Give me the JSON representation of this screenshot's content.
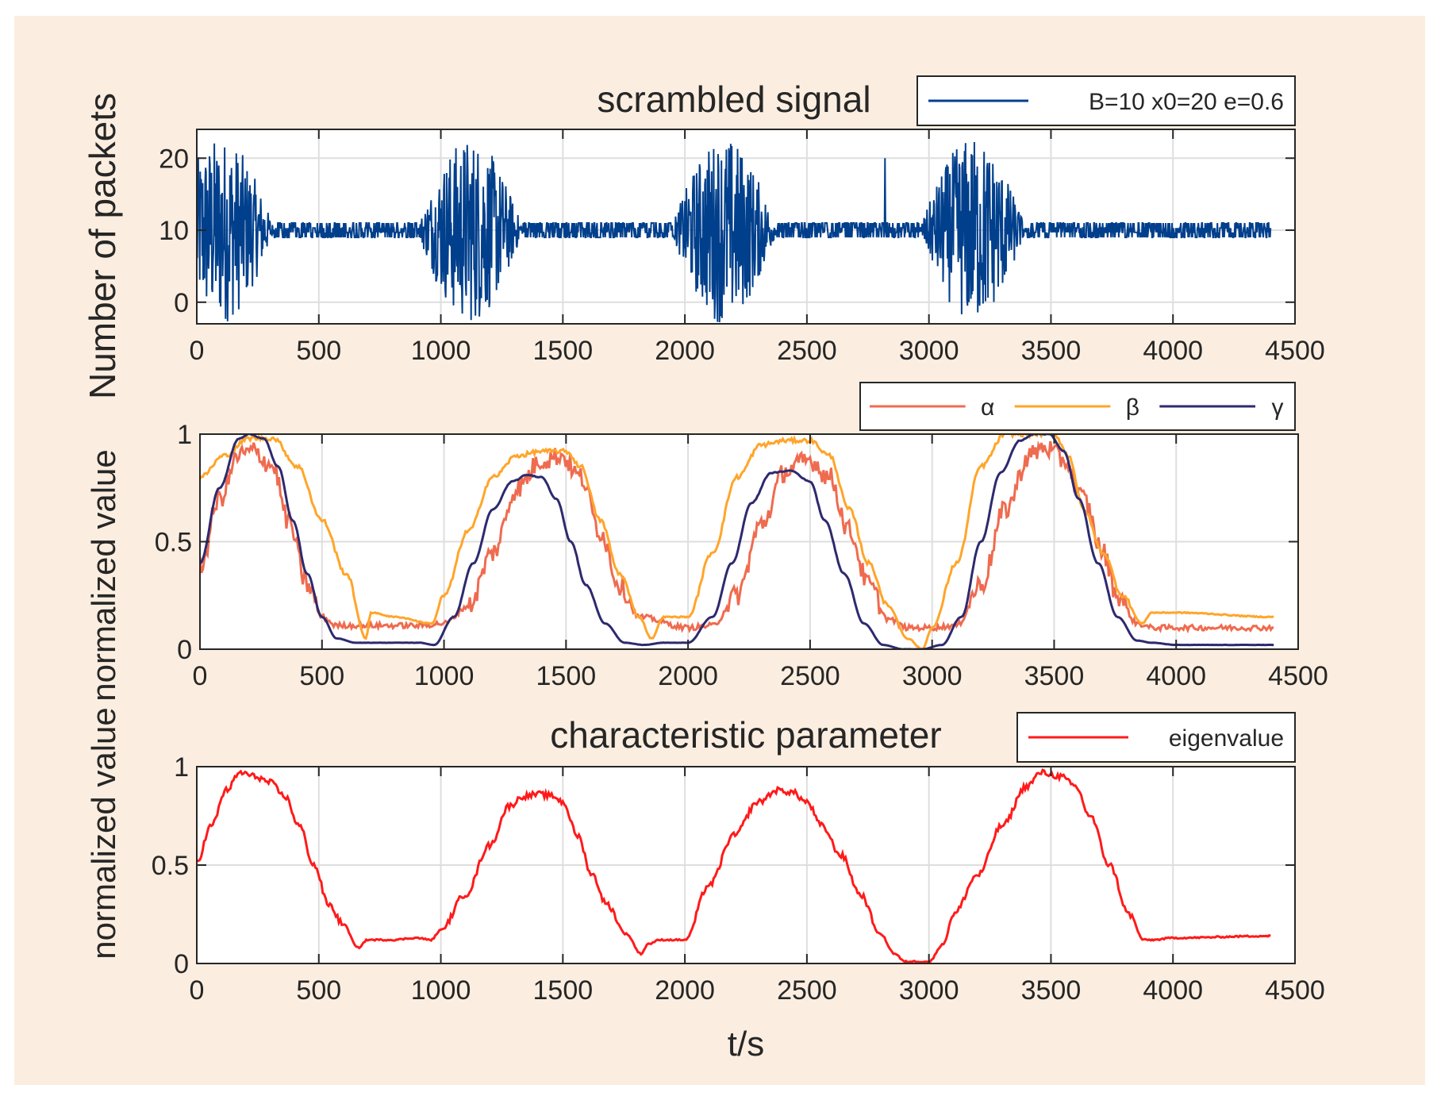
{
  "figure": {
    "background": "#fbeee0",
    "outer_ylabel": "Number of packets",
    "middle_ylabel": "normalized value",
    "lower_ylabel": "normalized value",
    "xlabel": "t/s"
  },
  "chart_data": [
    {
      "type": "line",
      "title": "scrambled signal",
      "ylabel": "Number of packets",
      "xlim": [
        0,
        4500
      ],
      "ylim": [
        -3,
        24
      ],
      "xticks": [
        0,
        500,
        1000,
        1500,
        2000,
        2500,
        3000,
        3500,
        4000,
        4500
      ],
      "yticks": [
        0,
        10,
        20
      ],
      "grid": true,
      "legend_position": "top-right",
      "t_end": 4400,
      "baseline": 10,
      "burst_centers": [
        100,
        1120,
        2160,
        3180
      ],
      "burst_halfwidth": 220,
      "burst_amplitude": 13,
      "series": [
        {
          "name": "B=10 x0=20 e=0.6",
          "color": "#003f8c"
        }
      ]
    },
    {
      "type": "line",
      "title": "",
      "ylabel": "normalized value",
      "xlim": [
        0,
        4500
      ],
      "ylim": [
        0,
        1
      ],
      "xticks": [
        0,
        500,
        1000,
        1500,
        2000,
        2500,
        3000,
        3500,
        4000,
        4500
      ],
      "yticks": [
        0,
        0.5,
        1
      ],
      "grid": true,
      "legend_position": "top-right",
      "series": [
        {
          "name": "α",
          "color": "#ef6b4f",
          "x": [
            0,
            80,
            160,
            220,
            300,
            360,
            440,
            500,
            560,
            700,
            900,
            1000,
            1100,
            1200,
            1300,
            1400,
            1480,
            1560,
            1640,
            1720,
            1800,
            2000,
            2100,
            2200,
            2300,
            2400,
            2500,
            2580,
            2660,
            2740,
            2820,
            2900,
            3000,
            3100,
            3200,
            3300,
            3400,
            3460,
            3540,
            3620,
            3700,
            3760,
            3840,
            3900,
            4000,
            4400
          ],
          "y": [
            0.38,
            0.7,
            0.9,
            0.92,
            0.85,
            0.6,
            0.3,
            0.15,
            0.11,
            0.11,
            0.11,
            0.12,
            0.2,
            0.45,
            0.75,
            0.88,
            0.9,
            0.8,
            0.55,
            0.3,
            0.15,
            0.1,
            0.11,
            0.25,
            0.58,
            0.83,
            0.88,
            0.8,
            0.55,
            0.3,
            0.14,
            0.1,
            0.1,
            0.11,
            0.3,
            0.65,
            0.9,
            0.94,
            0.88,
            0.7,
            0.45,
            0.25,
            0.12,
            0.1,
            0.1,
            0.1
          ]
        },
        {
          "name": "β",
          "color": "#ffa52a",
          "x": [
            0,
            100,
            200,
            300,
            400,
            500,
            600,
            680,
            700,
            800,
            950,
            1000,
            1100,
            1200,
            1300,
            1400,
            1500,
            1560,
            1640,
            1720,
            1800,
            1850,
            1900,
            2000,
            2100,
            2200,
            2300,
            2400,
            2500,
            2580,
            2660,
            2740,
            2820,
            2900,
            2960,
            3000,
            3100,
            3200,
            3300,
            3400,
            3500,
            3560,
            3620,
            3700,
            3780,
            3860,
            3900,
            4000,
            4400
          ],
          "y": [
            0.8,
            0.9,
            0.98,
            0.98,
            0.85,
            0.6,
            0.35,
            0.05,
            0.17,
            0.15,
            0.12,
            0.25,
            0.55,
            0.8,
            0.9,
            0.92,
            0.92,
            0.85,
            0.6,
            0.35,
            0.15,
            0.05,
            0.15,
            0.15,
            0.45,
            0.8,
            0.95,
            0.97,
            0.97,
            0.9,
            0.65,
            0.4,
            0.2,
            0.05,
            0.0,
            0.1,
            0.4,
            0.85,
            1.0,
            1.0,
            1.0,
            0.9,
            0.65,
            0.45,
            0.25,
            0.12,
            0.17,
            0.17,
            0.15
          ]
        },
        {
          "name": "γ",
          "color": "#2d2a6e",
          "x": [
            0,
            80,
            160,
            200,
            260,
            320,
            380,
            440,
            500,
            560,
            640,
            700,
            900,
            960,
            1040,
            1120,
            1200,
            1280,
            1340,
            1400,
            1460,
            1520,
            1580,
            1660,
            1740,
            1820,
            1900,
            2000,
            2100,
            2180,
            2260,
            2340,
            2420,
            2500,
            2560,
            2640,
            2720,
            2800,
            2880,
            2960,
            3040,
            3120,
            3200,
            3280,
            3360,
            3420,
            3480,
            3540,
            3600,
            3680,
            3760,
            3840,
            3900,
            4000,
            4400
          ],
          "y": [
            0.4,
            0.75,
            0.98,
            1.0,
            0.98,
            0.85,
            0.6,
            0.35,
            0.15,
            0.05,
            0.03,
            0.03,
            0.03,
            0.02,
            0.15,
            0.4,
            0.65,
            0.78,
            0.81,
            0.8,
            0.7,
            0.5,
            0.3,
            0.12,
            0.03,
            0.02,
            0.03,
            0.03,
            0.15,
            0.4,
            0.68,
            0.82,
            0.83,
            0.78,
            0.6,
            0.35,
            0.12,
            0.02,
            0.0,
            0.0,
            0.02,
            0.15,
            0.5,
            0.82,
            0.97,
            1.0,
            1.0,
            0.92,
            0.7,
            0.4,
            0.15,
            0.04,
            0.03,
            0.02,
            0.02
          ]
        }
      ]
    },
    {
      "type": "line",
      "title": "characteristic parameter",
      "ylabel": "normalized value",
      "xlabel": "t/s",
      "xlim": [
        0,
        4500
      ],
      "ylim": [
        0,
        1
      ],
      "xticks": [
        0,
        500,
        1000,
        1500,
        2000,
        2500,
        3000,
        3500,
        4000,
        4500
      ],
      "yticks": [
        0,
        0.5,
        1
      ],
      "grid": true,
      "legend_position": "top-right",
      "series": [
        {
          "name": "eigenvalue",
          "color": "#ff1a1a",
          "x": [
            0,
            60,
            120,
            180,
            240,
            300,
            360,
            420,
            480,
            540,
            600,
            660,
            700,
            800,
            900,
            960,
            1000,
            1100,
            1200,
            1280,
            1340,
            1400,
            1460,
            1500,
            1560,
            1620,
            1680,
            1760,
            1820,
            1850,
            1900,
            2000,
            2100,
            2200,
            2300,
            2380,
            2440,
            2500,
            2560,
            2640,
            2720,
            2800,
            2860,
            2900,
            3000,
            3060,
            3100,
            3200,
            3300,
            3400,
            3460,
            3540,
            3600,
            3660,
            3740,
            3820,
            3880,
            3920,
            4000,
            4400
          ],
          "y": [
            0.52,
            0.7,
            0.88,
            0.97,
            0.95,
            0.92,
            0.85,
            0.7,
            0.5,
            0.3,
            0.2,
            0.08,
            0.12,
            0.12,
            0.13,
            0.12,
            0.17,
            0.35,
            0.6,
            0.8,
            0.85,
            0.86,
            0.85,
            0.82,
            0.65,
            0.45,
            0.3,
            0.15,
            0.05,
            0.1,
            0.12,
            0.12,
            0.4,
            0.65,
            0.82,
            0.88,
            0.87,
            0.82,
            0.7,
            0.55,
            0.35,
            0.15,
            0.05,
            0.01,
            0.01,
            0.1,
            0.25,
            0.45,
            0.7,
            0.9,
            0.97,
            0.95,
            0.9,
            0.75,
            0.5,
            0.25,
            0.12,
            0.12,
            0.13,
            0.14
          ]
        }
      ]
    }
  ]
}
